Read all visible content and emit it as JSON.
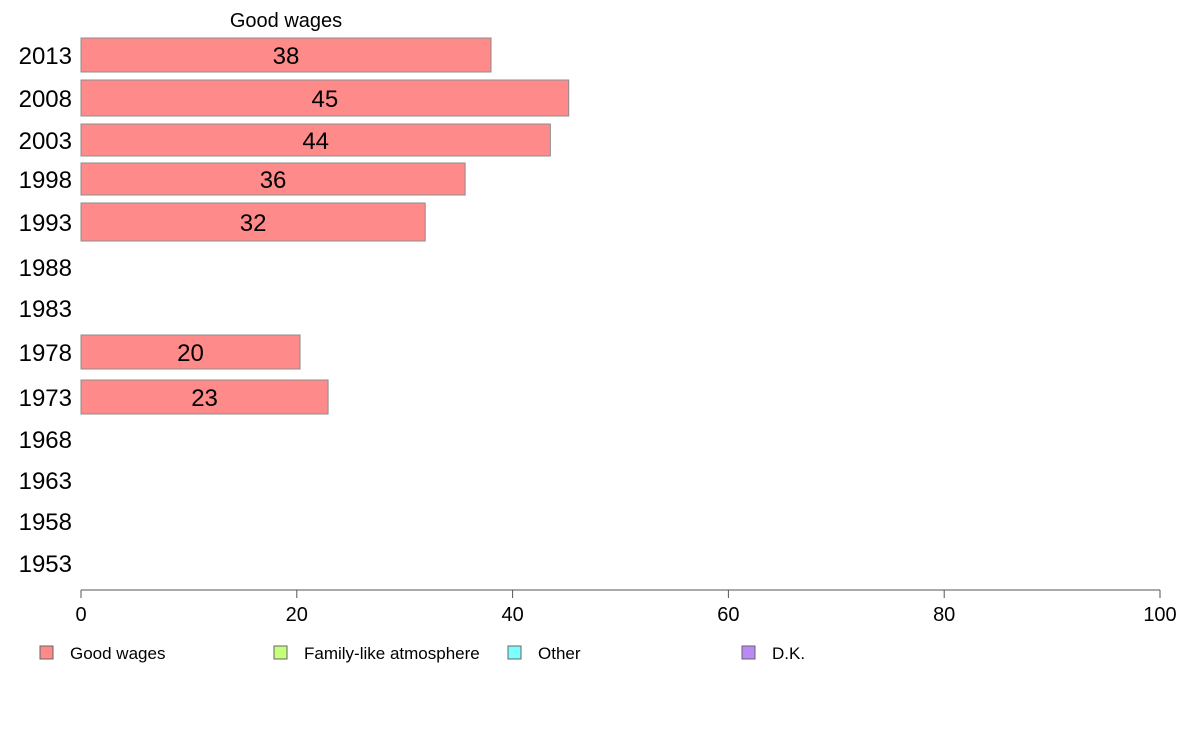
{
  "chart_data": {
    "type": "bar",
    "orientation": "horizontal",
    "title": "Good wages",
    "categories": [
      "2013",
      "2008",
      "2003",
      "1998",
      "1993",
      "1988",
      "1983",
      "1978",
      "1973",
      "1968",
      "1963",
      "1958",
      "1953"
    ],
    "series": [
      {
        "name": "Good wages",
        "color": "#ff8a8a",
        "values": [
          38,
          45,
          44,
          36,
          32,
          null,
          null,
          20,
          23,
          null,
          null,
          null,
          null
        ],
        "bar_lengths": [
          38,
          45.2,
          43.5,
          35.6,
          31.9,
          null,
          null,
          20.3,
          22.9,
          null,
          null,
          null,
          null
        ]
      }
    ],
    "xlim": [
      0,
      100
    ],
    "xticks": [
      "0",
      "20",
      "40",
      "60",
      "80",
      "100"
    ],
    "grid": false,
    "legend": {
      "position": "bottom",
      "entries": [
        {
          "label": "Good wages",
          "color": "#ff8a8a"
        },
        {
          "label": "Family-like atmosphere",
          "color": "#c6ff7a"
        },
        {
          "label": "Other",
          "color": "#7affff"
        },
        {
          "label": "D.K.",
          "color": "#b98af5"
        }
      ]
    }
  }
}
